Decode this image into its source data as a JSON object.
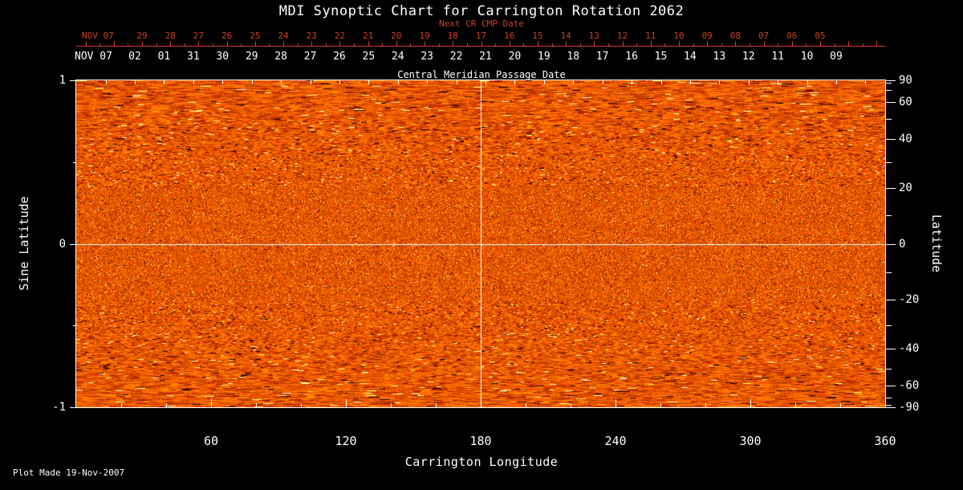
{
  "title": "MDI Synoptic Chart for Carrington Rotation 2062",
  "footer_note": "Plot Made 19-Nov-2007",
  "colors": {
    "background": "#000000",
    "foreground": "#ffffff",
    "red_axis": "#cf401f"
  },
  "top_axis_red": {
    "label": "Next CR CMP Date",
    "month_label": "NOV 07",
    "day_labels": [
      "29",
      "28",
      "27",
      "26",
      "25",
      "24",
      "23",
      "22",
      "21",
      "20",
      "19",
      "18",
      "17",
      "16",
      "15",
      "14",
      "13",
      "12",
      "11",
      "10",
      "09",
      "08",
      "07",
      "06",
      "05"
    ]
  },
  "cmp_axis": {
    "label": "Central Meridian Passage Date",
    "month_label": "NOV 07",
    "day_labels": [
      "02",
      "01",
      "31",
      "30",
      "29",
      "28",
      "27",
      "26",
      "25",
      "24",
      "23",
      "22",
      "21",
      "20",
      "19",
      "18",
      "17",
      "16",
      "15",
      "14",
      "13",
      "12",
      "11",
      "10",
      "09"
    ]
  },
  "left_axis": {
    "label": "Sine Latitude",
    "ticks": [
      {
        "label": "1",
        "value": 1
      },
      {
        "label": "0",
        "value": 0
      },
      {
        "label": "-1",
        "value": -1
      }
    ]
  },
  "right_axis": {
    "label": "Latitude",
    "minor_step_deg": 10,
    "ticks": [
      {
        "label": "90",
        "value": 90
      },
      {
        "label": "60",
        "value": 60
      },
      {
        "label": "40",
        "value": 40
      },
      {
        "label": "20",
        "value": 20
      },
      {
        "label": "0",
        "value": 0
      },
      {
        "label": "-20",
        "value": -20
      },
      {
        "label": "-40",
        "value": -40
      },
      {
        "label": "-60",
        "value": -60
      },
      {
        "label": "-90",
        "value": -90
      }
    ]
  },
  "bottom_axis": {
    "label": "Carrington Longitude",
    "ticks": [
      {
        "label": "60",
        "value": 60
      },
      {
        "label": "120",
        "value": 120
      },
      {
        "label": "180",
        "value": 180
      },
      {
        "label": "240",
        "value": 240
      },
      {
        "label": "300",
        "value": 300
      },
      {
        "label": "360",
        "value": 360
      }
    ]
  },
  "chart_data": {
    "type": "heatmap",
    "title": "MDI Synoptic Chart for Carrington Rotation 2062",
    "xlabel": "Carrington Longitude",
    "ylabel_left": "Sine Latitude",
    "ylabel_right": "Latitude",
    "xlim": [
      0,
      360
    ],
    "ylim_sine_latitude": [
      -1,
      1
    ],
    "x_ticks": [
      60,
      120,
      180,
      240,
      300,
      360
    ],
    "left_ticks_sine_latitude": [
      1,
      0,
      -1
    ],
    "right_ticks_latitude_deg": [
      90,
      60,
      40,
      20,
      0,
      -20,
      -40,
      -60,
      -90
    ],
    "top_axis_cmp_dates": [
      "NOV 07",
      "02",
      "01",
      "31",
      "30",
      "29",
      "28",
      "27",
      "26",
      "25",
      "24",
      "23",
      "22",
      "21",
      "20",
      "19",
      "18",
      "17",
      "16",
      "15",
      "14",
      "13",
      "12",
      "11",
      "10",
      "09"
    ],
    "next_cr_cmp_dates": [
      "NOV 07",
      "29",
      "28",
      "27",
      "26",
      "25",
      "24",
      "23",
      "22",
      "21",
      "20",
      "19",
      "18",
      "17",
      "16",
      "15",
      "14",
      "13",
      "12",
      "11",
      "10",
      "09",
      "08",
      "07",
      "06",
      "05"
    ],
    "reference_lines": [
      {
        "orientation": "vertical",
        "x": 180,
        "color": "#ffffff"
      },
      {
        "orientation": "horizontal",
        "sine_latitude": 0,
        "color": "#ffffff"
      }
    ],
    "field": "Full-rotation MDI solar magnetogram synoptic map rendered in a red-temperature palette: dominant orange-red mottled texture with scattered dark (negative flux) and bright yellow-white (positive flux) speckles; texture becomes horizontally streaked toward the poles",
    "palette_samples": [
      "#200000",
      "#a01800",
      "#e8500a",
      "#ff9a30",
      "#fff2c8"
    ],
    "grid": false,
    "legend": false,
    "plot_made": "19-Nov-2007"
  }
}
